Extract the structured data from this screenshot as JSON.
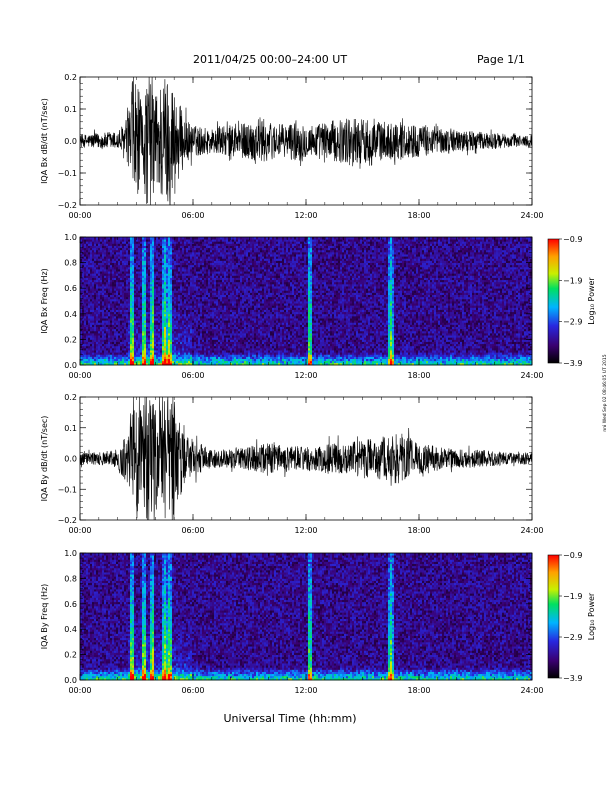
{
  "header": {
    "title": "2011/04/25  00:00–24:00 UT",
    "page": "Page 1/1"
  },
  "side_stamp": "nni Wed Sep 02 08:46:05 UT 2015",
  "xlabel": "Universal Time (hh:mm)",
  "x_ticks": [
    "00:00",
    "06:00",
    "12:00",
    "18:00",
    "24:00"
  ],
  "colors": {
    "trace": "#000000",
    "colorbar": [
      "#000000",
      "#3a0070",
      "#2828e0",
      "#00b4ff",
      "#00e060",
      "#c8f000",
      "#ffa000",
      "#ff0000"
    ]
  },
  "chart_data": [
    {
      "type": "line",
      "ylabel": "IQA Bx dB/dt (nT/sec)",
      "xlim": [
        0,
        24
      ],
      "ylim": [
        -0.2,
        0.2
      ],
      "y_ticks": [
        "0.2",
        "0.1",
        "0.0",
        "−0.1",
        "−0.2"
      ],
      "envelope": {
        "hours": [
          0,
          1,
          2,
          2.6,
          2.8,
          3.0,
          3.3,
          3.5,
          3.8,
          4.0,
          4.3,
          4.6,
          5.0,
          5.5,
          6.0,
          7.0,
          8.0,
          9.0,
          9.5,
          10,
          11,
          11.5,
          12,
          13,
          14,
          14.5,
          15,
          15.5,
          16,
          17,
          18,
          19,
          20,
          21,
          22,
          23,
          24
        ],
        "amplitude": [
          0.02,
          0.025,
          0.03,
          0.08,
          0.22,
          0.2,
          0.1,
          0.2,
          0.22,
          0.14,
          0.2,
          0.22,
          0.18,
          0.08,
          0.05,
          0.04,
          0.05,
          0.06,
          0.08,
          0.06,
          0.05,
          0.07,
          0.05,
          0.06,
          0.07,
          0.08,
          0.07,
          0.08,
          0.06,
          0.06,
          0.05,
          0.04,
          0.035,
          0.03,
          0.025,
          0.02,
          0.02
        ]
      }
    },
    {
      "type": "heatmap",
      "ylabel": "IQA Bx Freq (Hz)",
      "xlim": [
        0,
        24
      ],
      "ylim": [
        0,
        1.0
      ],
      "y_ticks": [
        "1.0",
        "0.8",
        "0.6",
        "0.4",
        "0.2",
        "0.0"
      ],
      "colorbar": {
        "label": "Log₁₀ Power",
        "ticks": [
          "−0.9",
          "−1.9",
          "−2.9",
          "−3.9"
        ],
        "range": [
          -3.9,
          -0.9
        ]
      },
      "events_hours": [
        2.75,
        3.4,
        3.85,
        4.5,
        4.75,
        12.2,
        16.5
      ]
    },
    {
      "type": "line",
      "ylabel": "IQA By dB/dt (nT/sec)",
      "xlim": [
        0,
        24
      ],
      "ylim": [
        -0.2,
        0.2
      ],
      "y_ticks": [
        "0.2",
        "0.1",
        "0.0",
        "−0.1",
        "−0.2"
      ],
      "envelope": {
        "hours": [
          0,
          1,
          2,
          2.6,
          2.8,
          3.0,
          3.3,
          3.5,
          3.8,
          4.0,
          4.3,
          4.6,
          5.0,
          5.5,
          6.0,
          7.0,
          8.0,
          9.0,
          10,
          11,
          12,
          13,
          14,
          15,
          16,
          16.5,
          17,
          17.5,
          18,
          19,
          20,
          21,
          22,
          23,
          24
        ],
        "amplitude": [
          0.02,
          0.02,
          0.03,
          0.1,
          0.22,
          0.2,
          0.15,
          0.22,
          0.22,
          0.16,
          0.22,
          0.22,
          0.2,
          0.1,
          0.06,
          0.03,
          0.03,
          0.04,
          0.05,
          0.04,
          0.04,
          0.05,
          0.05,
          0.06,
          0.07,
          0.08,
          0.09,
          0.07,
          0.05,
          0.04,
          0.03,
          0.03,
          0.025,
          0.02,
          0.02
        ]
      }
    },
    {
      "type": "heatmap",
      "ylabel": "IQA By Freq (Hz)",
      "xlim": [
        0,
        24
      ],
      "ylim": [
        0,
        1.0
      ],
      "y_ticks": [
        "1.0",
        "0.8",
        "0.6",
        "0.4",
        "0.2",
        "0.0"
      ],
      "colorbar": {
        "label": "Log₁₀ Power",
        "ticks": [
          "−0.9",
          "−1.9",
          "−2.9",
          "−3.9"
        ],
        "range": [
          -3.9,
          -0.9
        ]
      },
      "events_hours": [
        2.75,
        3.4,
        3.85,
        4.5,
        4.75,
        12.2,
        16.5
      ]
    }
  ]
}
